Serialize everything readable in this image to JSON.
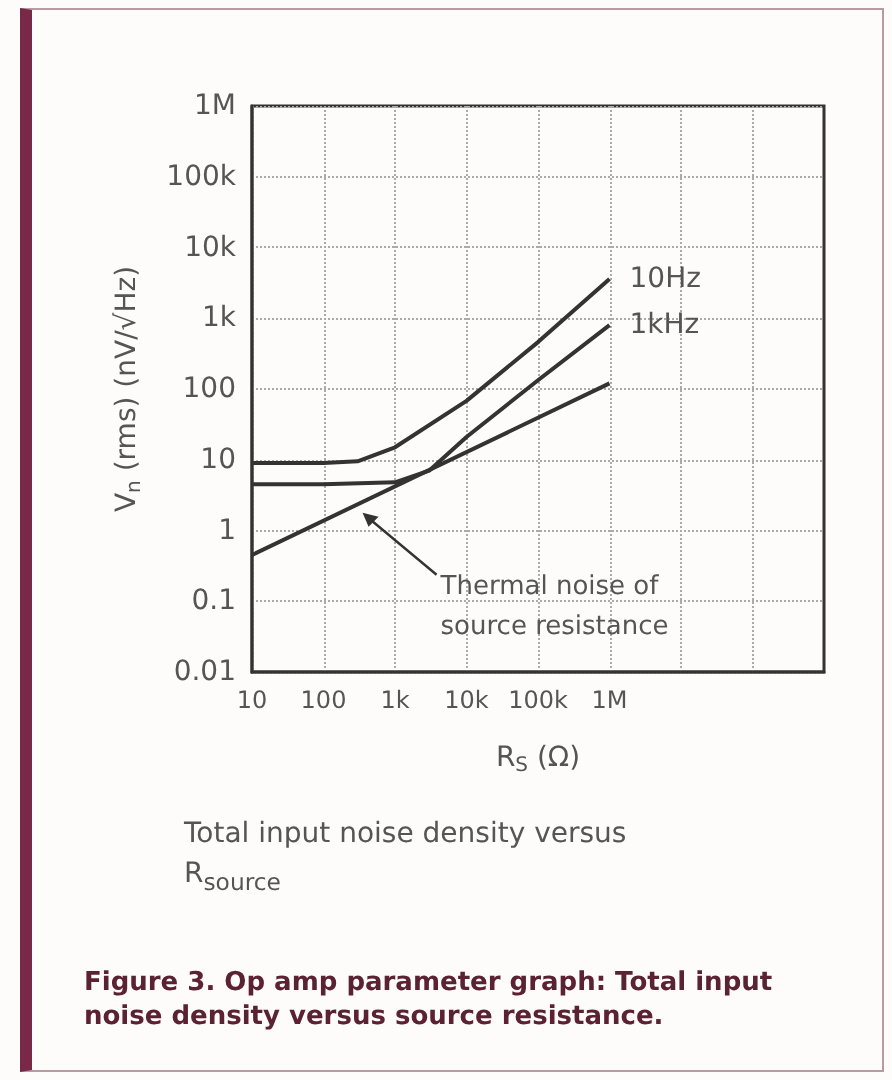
{
  "chart_data": {
    "type": "line",
    "xlabel": "R$_{S}$ (Ω)",
    "ylabel": "V$_{n}$ (rms) (nV/√Hz)",
    "series": [
      {
        "name": "10Hz",
        "color": "#333333",
        "x": [
          10,
          100,
          300,
          1000,
          10000,
          100000,
          1000000
        ],
        "values": [
          9,
          9,
          9.5,
          15,
          68,
          460,
          3600
        ]
      },
      {
        "name": "1kHz",
        "color": "#333333",
        "x": [
          10,
          100,
          1000,
          3000,
          10000,
          100000,
          1000000
        ],
        "values": [
          4.5,
          4.5,
          4.8,
          7,
          21,
          133,
          800
        ]
      },
      {
        "color": "#333333",
        "x": [
          10,
          1000000
        ],
        "values": [
          0.45,
          120
        ]
      }
    ],
    "xlim": [
      10,
      1000000000
    ],
    "xticks": [
      10,
      100,
      {
        "value": 1000,
        "label": "1k"
      },
      {
        "value": 10000,
        "label": "10k"
      },
      {
        "value": 100000,
        "label": "100k"
      },
      {
        "value": 1000000,
        "label": "1M"
      },
      {
        "value": 10000000,
        "label": null
      },
      {
        "value": 100000000,
        "label": null
      }
    ],
    "ylim": [
      0.01,
      1000000
    ],
    "yticks": [
      0.01,
      0.1,
      1,
      10,
      100,
      {
        "value": 1000,
        "label": "1k"
      },
      {
        "value": 10000,
        "label": "10k"
      },
      {
        "value": 100000,
        "label": "100k"
      },
      {
        "value": 1000000,
        "label": "1M"
      }
    ],
    "log": "xy",
    "grid": true,
    "annotations": [
      {
        "text": "Thermal noise of source resistance",
        "x": 330,
        "y": 1.9
      },
      "Total input noise density versus R$_{source}$",
      "Figure 3. Op amp parameter graph: Total input noise density versus source resistance."
    ]
  }
}
